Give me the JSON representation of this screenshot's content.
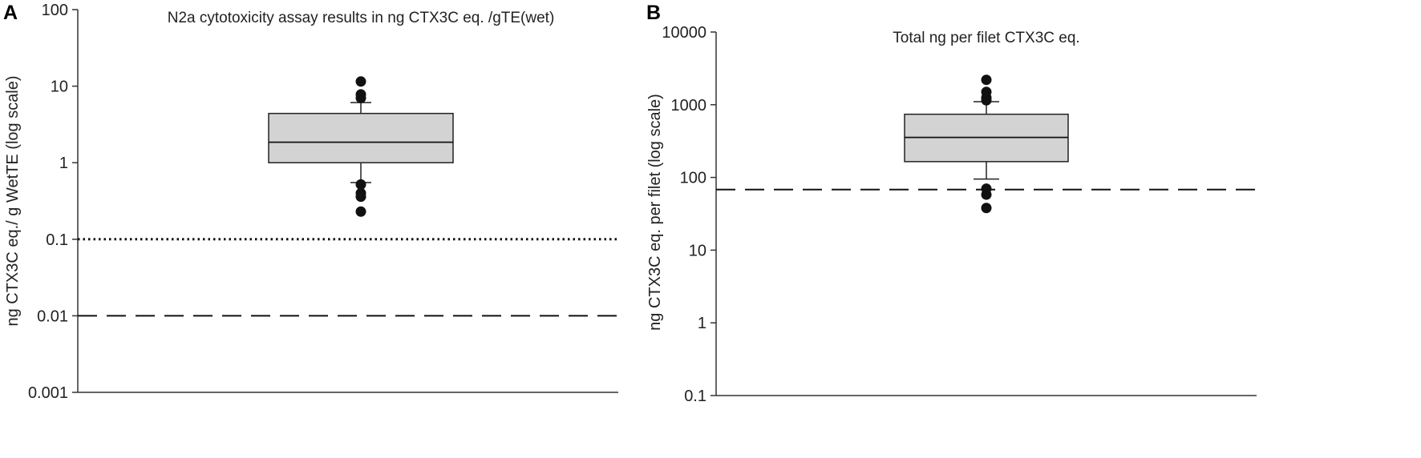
{
  "chart_data": [
    {
      "type": "box",
      "panel_label": "A",
      "title": "N2a cytotoxicity assay results in ng CTX3C eq. /gTE(wet)",
      "xlabel": "",
      "ylabel": "ng CTX3C eq./ g WetTE (log scale)",
      "yscale": "log",
      "ylim": [
        0.001,
        100
      ],
      "yticks": [
        0.001,
        0.01,
        0.1,
        1,
        10,
        100
      ],
      "ytick_labels": [
        "0.001",
        "0.01",
        "0.1",
        "1",
        "10",
        "100"
      ],
      "grid": false,
      "box": {
        "q1": 1.0,
        "median": 1.85,
        "q3": 4.4,
        "whisker_low": 0.55,
        "whisker_high": 6.1,
        "outliers": [
          11.5,
          7.8,
          7.0,
          0.52,
          0.4,
          0.36,
          0.23
        ],
        "fill": "#d3d3d3"
      },
      "reference_lines": [
        {
          "value": 0.1,
          "style": "dotted"
        },
        {
          "value": 0.01,
          "style": "dashed"
        }
      ]
    },
    {
      "type": "box",
      "panel_label": "B",
      "title": "Total ng per filet CTX3C eq.",
      "xlabel": "",
      "ylabel": "ng CTX3C eq. per filet (log scale)",
      "yscale": "log",
      "ylim": [
        0.1,
        10000
      ],
      "yticks": [
        0.1,
        1,
        10,
        100,
        1000,
        10000
      ],
      "ytick_labels": [
        "0.1",
        "1",
        "10",
        "100",
        "1000",
        "10000"
      ],
      "grid": false,
      "box": {
        "q1": 165,
        "median": 355,
        "q3": 740,
        "whisker_low": 95,
        "whisker_high": 1100,
        "outliers": [
          2200,
          1500,
          1250,
          1150,
          70,
          58,
          38
        ],
        "fill": "#d3d3d3"
      },
      "reference_lines": [
        {
          "value": 68,
          "style": "dashed"
        }
      ]
    }
  ]
}
